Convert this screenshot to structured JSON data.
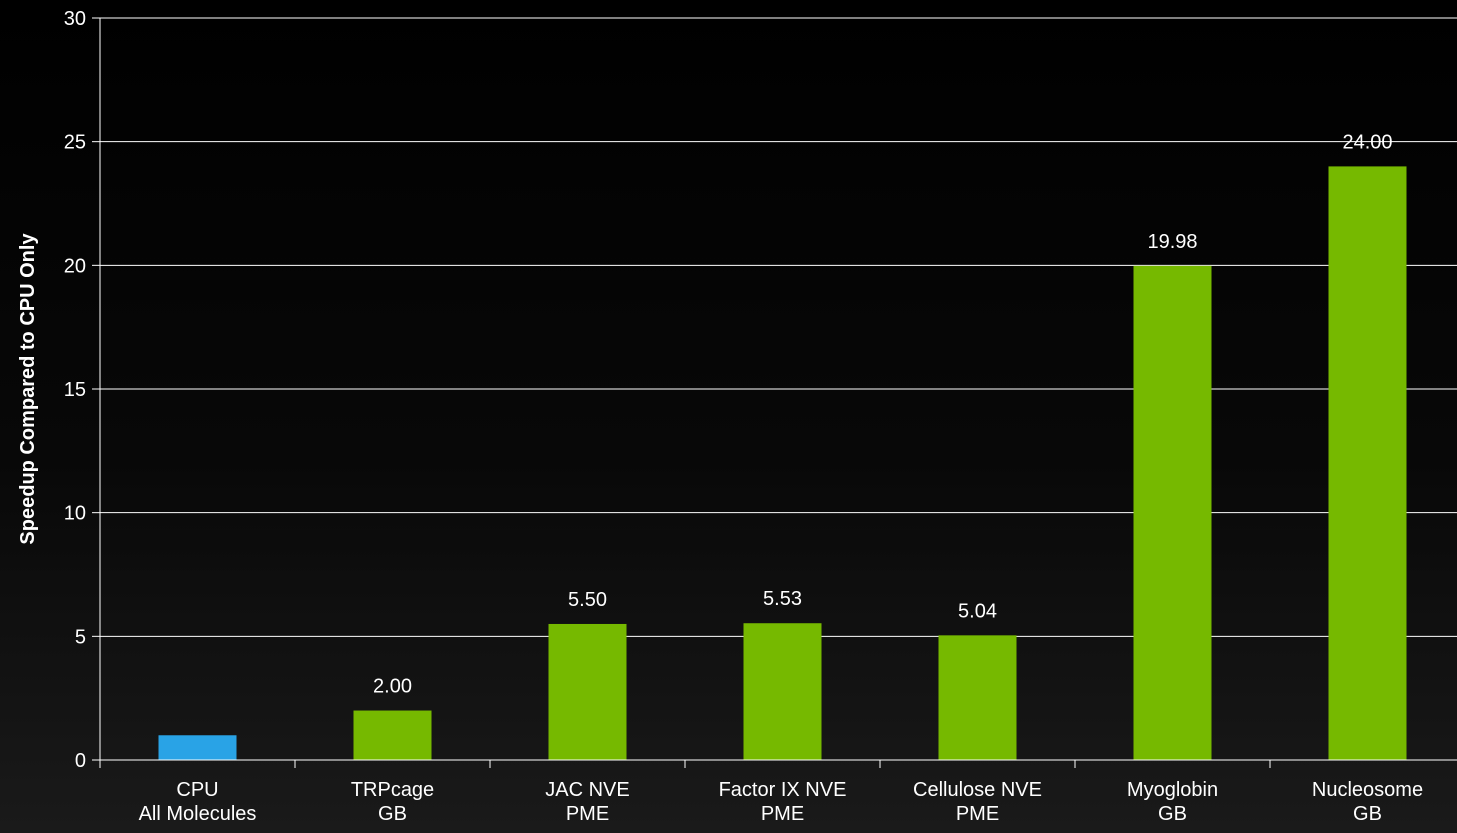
{
  "chart_data": {
    "type": "bar",
    "categories": [
      [
        "CPU",
        "All Molecules"
      ],
      [
        "TRPcage",
        "GB"
      ],
      [
        "JAC NVE",
        "PME"
      ],
      [
        "Factor IX NVE",
        "PME"
      ],
      [
        "Cellulose NVE",
        "PME"
      ],
      [
        "Myoglobin",
        "GB"
      ],
      [
        "Nucleosome",
        "GB"
      ]
    ],
    "values": [
      1.0,
      2.0,
      5.5,
      5.53,
      5.04,
      19.98,
      24.0
    ],
    "data_labels": [
      "",
      "2.00",
      "5.50",
      "5.53",
      "5.04",
      "19.98",
      "24.00"
    ],
    "bar_colors": [
      "#29a3e6",
      "#76b900",
      "#76b900",
      "#76b900",
      "#76b900",
      "#76b900",
      "#76b900"
    ],
    "ylabel": "Speedup Compared to CPU Only",
    "ylim": [
      0,
      30
    ],
    "yticks": [
      0,
      5,
      10,
      15,
      20,
      25,
      30
    ],
    "grid": true,
    "legend": "none",
    "colors": {
      "grid": "#ffffff",
      "axis": "#ffffff",
      "text": "#ffffff"
    }
  }
}
